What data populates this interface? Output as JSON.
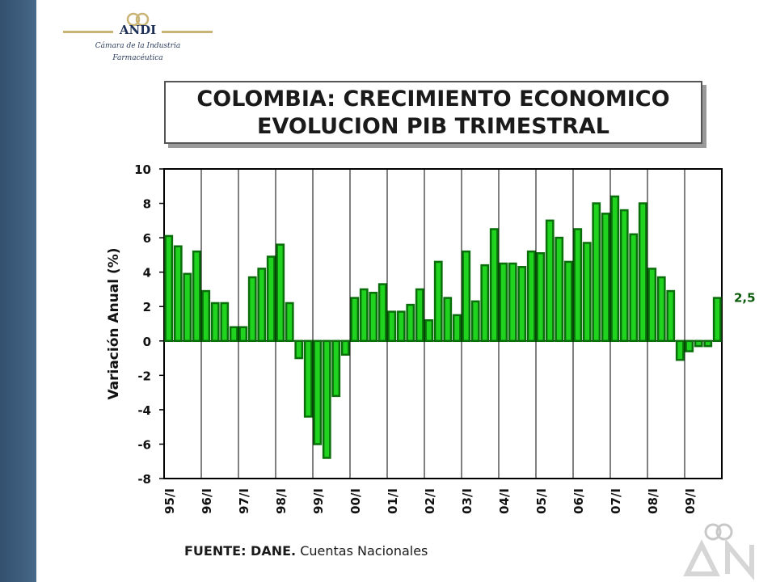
{
  "header": {
    "logo_text": "ANDI",
    "logo_caption_line1": "Cámara de la Industria",
    "logo_caption_line2": "Farmacéutica"
  },
  "title": {
    "line1": "COLOMBIA: CRECIMIENTO ECONOMICO",
    "line2": "EVOLUCION PIB TRIMESTRAL"
  },
  "source": {
    "label": "FUENTE: DANE.",
    "text": "Cuentas Nacionales"
  },
  "colors": {
    "bar_fill": "#1fd31f",
    "bar_stroke": "#0a6e0a",
    "annotation": "#0a5a0a",
    "band": "#3e5d7d"
  },
  "chart_data": {
    "type": "bar",
    "ylabel": "Variación Anual (%)",
    "xlabel": "",
    "ylim": [
      -8,
      10
    ],
    "yticks": [
      -8,
      -6,
      -4,
      -2,
      0,
      2,
      4,
      6,
      8,
      10
    ],
    "grid": "vertical lines at each year",
    "categories": [
      "95/I",
      "95/II",
      "95/III",
      "95/IV",
      "96/I",
      "96/II",
      "96/III",
      "96/IV",
      "97/I",
      "97/II",
      "97/III",
      "97/IV",
      "98/I",
      "98/II",
      "98/III",
      "98/IV",
      "99/I",
      "99/II",
      "99/III",
      "99/IV",
      "00/I",
      "00/II",
      "00/III",
      "00/IV",
      "01/I",
      "01/II",
      "01/III",
      "01/IV",
      "02/I",
      "02/II",
      "02/III",
      "02/IV",
      "03/I",
      "03/II",
      "03/III",
      "03/IV",
      "04/I",
      "04/II",
      "04/III",
      "04/IV",
      "05/I",
      "05/II",
      "05/III",
      "05/IV",
      "06/I",
      "06/II",
      "06/III",
      "06/IV",
      "07/I",
      "07/II",
      "07/III",
      "07/IV",
      "08/I",
      "08/II",
      "08/III",
      "08/IV",
      "09/I",
      "09/II",
      "09/III",
      "09/IV"
    ],
    "tick_labels": [
      "95/I",
      "96/I",
      "97/I",
      "98/I",
      "99/I",
      "00/I",
      "01/I",
      "02/I",
      "03/I",
      "04/I",
      "05/I",
      "06/I",
      "07/I",
      "08/I",
      "09/I"
    ],
    "values": [
      6.1,
      5.5,
      3.9,
      5.2,
      2.9,
      2.2,
      2.2,
      0.8,
      0.8,
      3.7,
      4.2,
      4.9,
      5.6,
      2.2,
      -1.0,
      -4.4,
      -6.0,
      -6.8,
      -3.2,
      -0.8,
      2.5,
      3.0,
      2.8,
      3.3,
      1.7,
      1.7,
      2.1,
      3.0,
      1.2,
      4.6,
      2.5,
      1.5,
      5.2,
      2.3,
      4.4,
      6.5,
      4.5,
      4.5,
      4.3,
      5.2,
      5.1,
      7.0,
      6.0,
      4.6,
      6.5,
      5.7,
      8.0,
      7.4,
      8.4,
      7.6,
      6.2,
      8.0,
      4.2,
      3.7,
      2.9,
      -1.1,
      -0.6,
      -0.3,
      -0.3,
      2.5
    ],
    "annotation": "2,5"
  }
}
